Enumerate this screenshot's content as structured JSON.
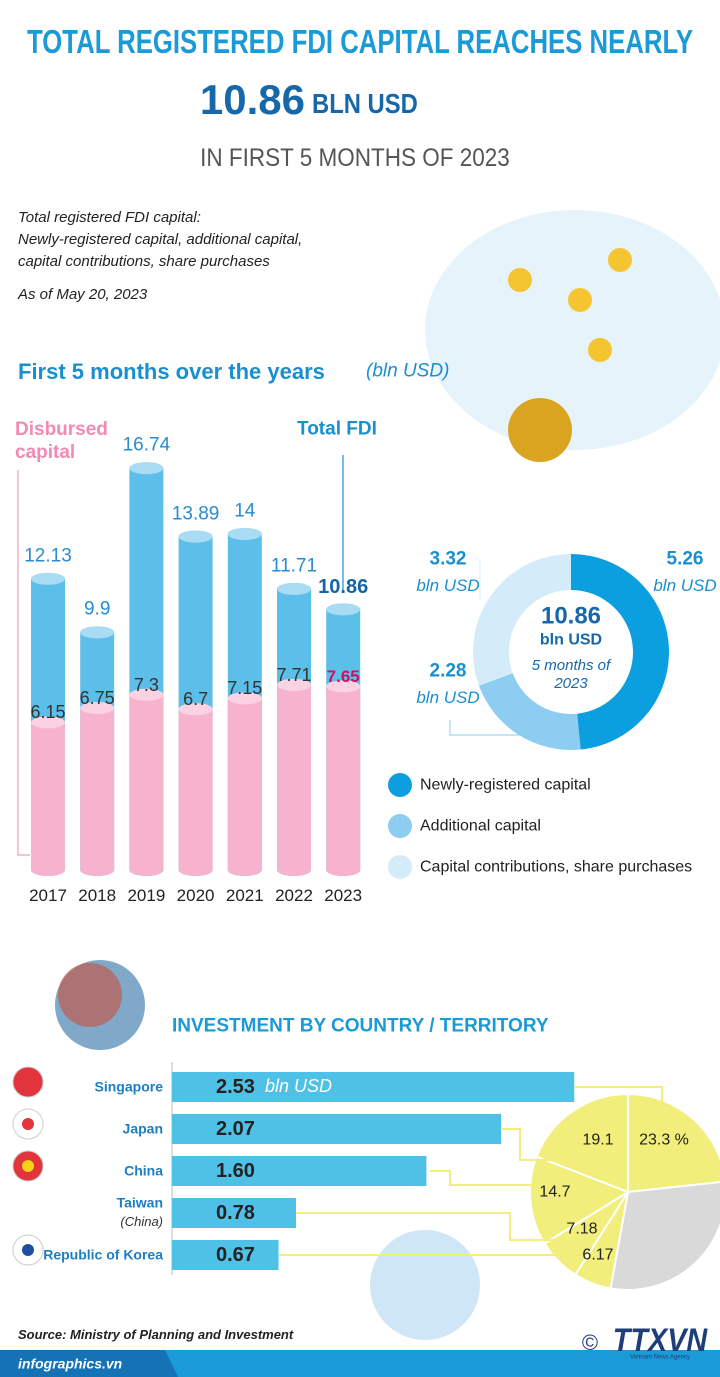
{
  "header": {
    "title": "TOTAL REGISTERED FDI CAPITAL REACHES NEARLY",
    "headline_value": "10.86",
    "headline_unit": "BLN USD",
    "subtitle": "IN FIRST 5 MONTHS OF 2023"
  },
  "notes": {
    "definition": [
      "Total registered FDI capital:",
      "Newly-registered capital, additional capital,",
      "capital contributions, share purchases"
    ],
    "as_of": "As of May 20, 2023"
  },
  "chart_data": [
    {
      "type": "bar",
      "title": "First 5 months over the years",
      "unit": "(bln USD)",
      "categories": [
        "2017",
        "2018",
        "2019",
        "2020",
        "2021",
        "2022",
        "2023"
      ],
      "series": [
        {
          "name": "Total FDI",
          "color": "#5cbfe9",
          "values": [
            12.13,
            9.9,
            16.74,
            13.89,
            14,
            11.71,
            10.86
          ]
        },
        {
          "name": "Disbursed capital",
          "color": "#f7b3cd",
          "values": [
            6.15,
            6.75,
            7.3,
            6.7,
            7.15,
            7.71,
            7.65
          ]
        }
      ]
    },
    {
      "type": "pie",
      "donut": true,
      "categories": [
        "Newly-registered capital",
        "Additional capital",
        "Capital contributions, share purchases"
      ],
      "values": [
        5.26,
        2.28,
        3.32
      ],
      "colors": [
        "#0b9fe0",
        "#8dcdf1",
        "#d4ecf9"
      ],
      "value_unit": "bln USD",
      "center_value": "10.86",
      "center_unit": "bln USD",
      "center_note": "5 months of 2023"
    },
    {
      "type": "hbar",
      "title": "INVESTMENT BY COUNTRY / TERRITORY",
      "categories": [
        "Singapore",
        "Japan",
        "China",
        "Taiwan",
        "Republic of Korea"
      ],
      "subcategories": [
        null,
        null,
        null,
        "(China)",
        null
      ],
      "values": [
        2.53,
        2.07,
        1.6,
        0.78,
        0.67
      ],
      "value_labels": [
        "2.53",
        "2.07",
        "1.60",
        "0.78",
        "0.67"
      ],
      "value_unit": "bln USD",
      "color": "#4fc0e6"
    },
    {
      "type": "pie",
      "values": [
        23.3,
        19.1,
        14.7,
        7.18,
        6.17,
        29.55
      ],
      "value_labels": [
        "23.3 %",
        "19.1",
        "14.7",
        "7.18",
        "6.17",
        null
      ],
      "colors": [
        "#f2ee7c",
        "#f2ee7c",
        "#f2ee7c",
        "#f2ee7c",
        "#f2ee7c",
        "#d9d9d9"
      ]
    }
  ],
  "footer": {
    "source": "Source: Ministry of Planning and Investment",
    "site": "infographics.vn",
    "copyright": "©",
    "logo": "TTXVN",
    "logo_sub": "Vietnam News Agency"
  }
}
